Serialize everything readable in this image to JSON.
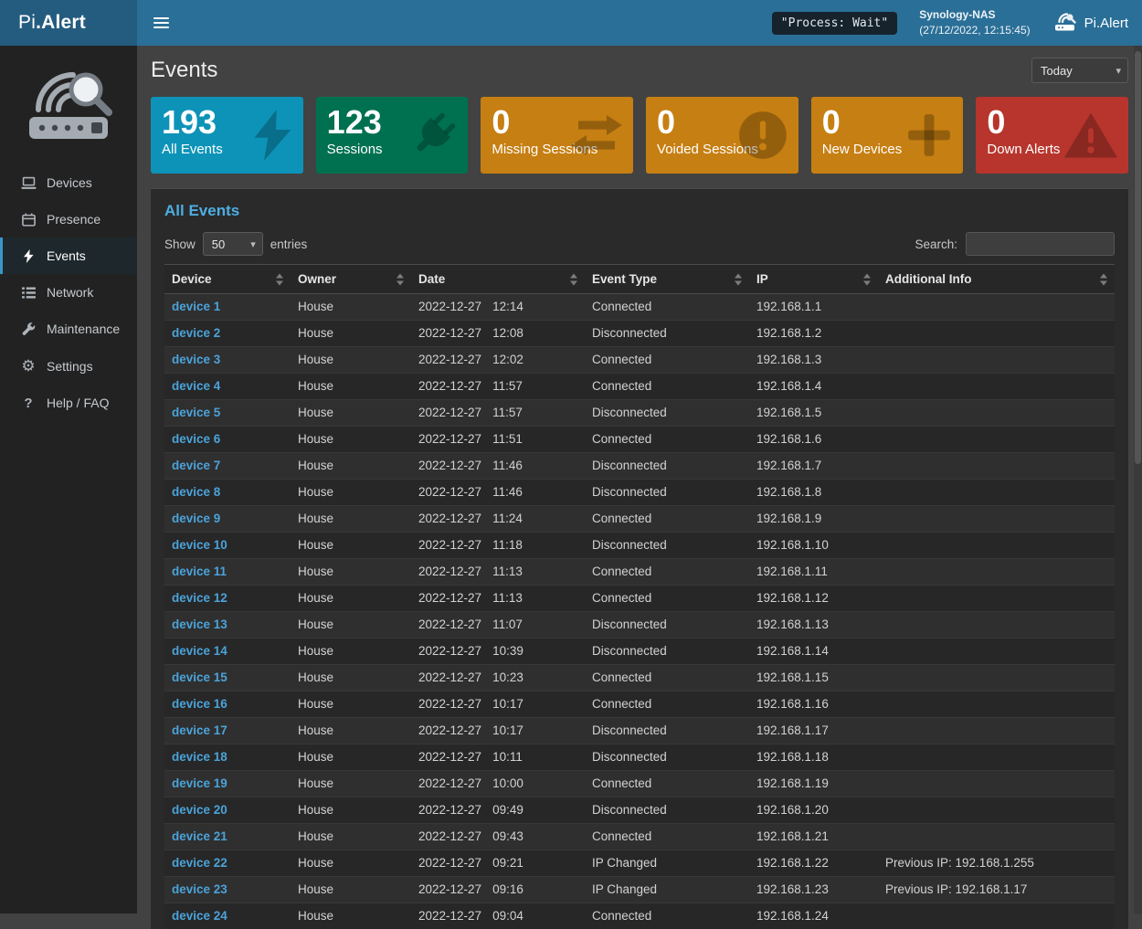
{
  "brand": {
    "sidebar_logo_prefix": "Pi",
    "sidebar_logo_suffix": ".Alert",
    "topbar_right_label": "Pi.Alert"
  },
  "topbar": {
    "process_status": "\"Process: Wait\"",
    "host_name": "Synology-NAS",
    "host_time": "(27/12/2022, 12:15:45)"
  },
  "sidebar": {
    "items": [
      {
        "label": "Devices",
        "icon": "devices-icon",
        "active": false
      },
      {
        "label": "Presence",
        "icon": "presence-icon",
        "active": false
      },
      {
        "label": "Events",
        "icon": "events-icon",
        "active": true
      },
      {
        "label": "Network",
        "icon": "network-icon",
        "active": false
      },
      {
        "label": "Maintenance",
        "icon": "maintenance-icon",
        "active": false
      },
      {
        "label": "Settings",
        "icon": "settings-icon",
        "active": false
      },
      {
        "label": "Help / FAQ",
        "icon": "help-icon",
        "active": false
      }
    ]
  },
  "page": {
    "title": "Events",
    "period_selected": "Today"
  },
  "summary_cards": [
    {
      "value": "193",
      "label": "All Events",
      "color": "#0d93b8",
      "icon": "bolt-icon"
    },
    {
      "value": "123",
      "label": "Sessions",
      "color": "#007150",
      "icon": "plug-icon"
    },
    {
      "value": "0",
      "label": "Missing Sessions",
      "color": "#c67f12",
      "icon": "exchange-icon"
    },
    {
      "value": "0",
      "label": "Voided Sessions",
      "color": "#c67f12",
      "icon": "exclamation-circle-icon"
    },
    {
      "value": "0",
      "label": "New Devices",
      "color": "#c67f12",
      "icon": "plus-icon"
    },
    {
      "value": "0",
      "label": "Down Alerts",
      "color": "#b7352c",
      "icon": "warning-icon"
    }
  ],
  "events_panel": {
    "title": "All Events",
    "show_label": "Show",
    "entries_label": "entries",
    "page_length": "50",
    "search_label": "Search:",
    "search_value": "",
    "columns": [
      "Device",
      "Owner",
      "Date",
      "Event Type",
      "IP",
      "Additional Info"
    ],
    "rows": [
      {
        "device": "device 1",
        "owner": "House",
        "date": "2022-12-27",
        "time": "12:14",
        "event_type": "Connected",
        "ip": "192.168.1.1",
        "info": ""
      },
      {
        "device": "device 2",
        "owner": "House",
        "date": "2022-12-27",
        "time": "12:08",
        "event_type": "Disconnected",
        "ip": "192.168.1.2",
        "info": ""
      },
      {
        "device": "device 3",
        "owner": "House",
        "date": "2022-12-27",
        "time": "12:02",
        "event_type": "Connected",
        "ip": "192.168.1.3",
        "info": ""
      },
      {
        "device": "device 4",
        "owner": "House",
        "date": "2022-12-27",
        "time": "11:57",
        "event_type": "Connected",
        "ip": "192.168.1.4",
        "info": ""
      },
      {
        "device": "device 5",
        "owner": "House",
        "date": "2022-12-27",
        "time": "11:57",
        "event_type": "Disconnected",
        "ip": "192.168.1.5",
        "info": ""
      },
      {
        "device": "device 6",
        "owner": "House",
        "date": "2022-12-27",
        "time": "11:51",
        "event_type": "Connected",
        "ip": "192.168.1.6",
        "info": ""
      },
      {
        "device": "device 7",
        "owner": "House",
        "date": "2022-12-27",
        "time": "11:46",
        "event_type": "Disconnected",
        "ip": "192.168.1.7",
        "info": ""
      },
      {
        "device": "device 8",
        "owner": "House",
        "date": "2022-12-27",
        "time": "11:46",
        "event_type": "Disconnected",
        "ip": "192.168.1.8",
        "info": ""
      },
      {
        "device": "device 9",
        "owner": "House",
        "date": "2022-12-27",
        "time": "11:24",
        "event_type": "Connected",
        "ip": "192.168.1.9",
        "info": ""
      },
      {
        "device": "device 10",
        "owner": "House",
        "date": "2022-12-27",
        "time": "11:18",
        "event_type": "Disconnected",
        "ip": "192.168.1.10",
        "info": ""
      },
      {
        "device": "device 11",
        "owner": "House",
        "date": "2022-12-27",
        "time": "11:13",
        "event_type": "Connected",
        "ip": "192.168.1.11",
        "info": ""
      },
      {
        "device": "device 12",
        "owner": "House",
        "date": "2022-12-27",
        "time": "11:13",
        "event_type": "Connected",
        "ip": "192.168.1.12",
        "info": ""
      },
      {
        "device": "device 13",
        "owner": "House",
        "date": "2022-12-27",
        "time": "11:07",
        "event_type": "Disconnected",
        "ip": "192.168.1.13",
        "info": ""
      },
      {
        "device": "device 14",
        "owner": "House",
        "date": "2022-12-27",
        "time": "10:39",
        "event_type": "Disconnected",
        "ip": "192.168.1.14",
        "info": ""
      },
      {
        "device": "device 15",
        "owner": "House",
        "date": "2022-12-27",
        "time": "10:23",
        "event_type": "Connected",
        "ip": "192.168.1.15",
        "info": ""
      },
      {
        "device": "device 16",
        "owner": "House",
        "date": "2022-12-27",
        "time": "10:17",
        "event_type": "Connected",
        "ip": "192.168.1.16",
        "info": ""
      },
      {
        "device": "device 17",
        "owner": "House",
        "date": "2022-12-27",
        "time": "10:17",
        "event_type": "Disconnected",
        "ip": "192.168.1.17",
        "info": ""
      },
      {
        "device": "device 18",
        "owner": "House",
        "date": "2022-12-27",
        "time": "10:11",
        "event_type": "Disconnected",
        "ip": "192.168.1.18",
        "info": ""
      },
      {
        "device": "device 19",
        "owner": "House",
        "date": "2022-12-27",
        "time": "10:00",
        "event_type": "Connected",
        "ip": "192.168.1.19",
        "info": ""
      },
      {
        "device": "device 20",
        "owner": "House",
        "date": "2022-12-27",
        "time": "09:49",
        "event_type": "Disconnected",
        "ip": "192.168.1.20",
        "info": ""
      },
      {
        "device": "device 21",
        "owner": "House",
        "date": "2022-12-27",
        "time": "09:43",
        "event_type": "Connected",
        "ip": "192.168.1.21",
        "info": ""
      },
      {
        "device": "device 22",
        "owner": "House",
        "date": "2022-12-27",
        "time": "09:21",
        "event_type": "IP Changed",
        "ip": "192.168.1.22",
        "info": "Previous IP: 192.168.1.255"
      },
      {
        "device": "device 23",
        "owner": "House",
        "date": "2022-12-27",
        "time": "09:16",
        "event_type": "IP Changed",
        "ip": "192.168.1.23",
        "info": "Previous IP: 192.168.1.17"
      },
      {
        "device": "device 24",
        "owner": "House",
        "date": "2022-12-27",
        "time": "09:04",
        "event_type": "Connected",
        "ip": "192.168.1.24",
        "info": ""
      }
    ]
  }
}
